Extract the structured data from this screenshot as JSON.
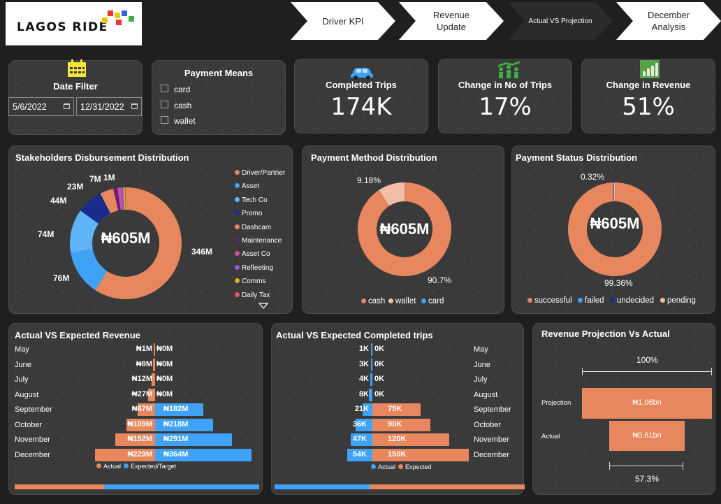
{
  "brand": {
    "name": "LAGOS RIDE"
  },
  "nav": [
    {
      "label": "Driver KPI"
    },
    {
      "label": "Revenue Update"
    },
    {
      "label": "Actual VS Projection"
    },
    {
      "label": "December Analysis"
    }
  ],
  "date_filter": {
    "title": "Date Filter",
    "start": "5/6/2022",
    "end": "12/31/2022"
  },
  "payment_means": {
    "title": "Payment Means",
    "options": [
      "card",
      "cash",
      "wallet"
    ]
  },
  "kpis": [
    {
      "label": "Completed Trips",
      "value": "174K",
      "icon": "car-icon"
    },
    {
      "label": "Change in No of Trips",
      "value": "17%",
      "icon": "people-growth-icon"
    },
    {
      "label": "Change in Revenue",
      "value": "51%",
      "icon": "bar-growth-icon"
    }
  ],
  "colors": {
    "orange": "#e8875e",
    "blue": "#3ea3f6",
    "lightblue": "#5fb3f7",
    "navy": "#1b2a8c",
    "purple": "#6b1f7a",
    "pink": "#d04fa0",
    "violet": "#8c5ad6",
    "gold": "#d6b21c",
    "red": "#e05a5a",
    "peach": "#f2bfa6"
  },
  "stakeholders": {
    "title": "Stakeholders Disbursement Distribution",
    "center": "₦605M",
    "legend": [
      "Driver/Partner",
      "Asset",
      "Tech Co",
      "Promo",
      "Dashcam",
      "Maintenance",
      "Asset Co",
      "Refleeting",
      "Comms",
      "Daily Tax"
    ],
    "labels": [
      "346M",
      "76M",
      "74M",
      "44M",
      "23M",
      "7M",
      "1M"
    ]
  },
  "payment_method": {
    "title": "Payment Method Distribution",
    "center": "₦605M",
    "labels": [
      "9.18%",
      "90.7%"
    ],
    "legend": [
      "cash",
      "wallet",
      "card"
    ]
  },
  "payment_status": {
    "title": "Payment Status Distribution",
    "center": "₦605M",
    "labels": [
      "0.32%",
      "99.36%"
    ],
    "legend": [
      "successful",
      "failed",
      "undecided",
      "pending"
    ]
  },
  "revenue_chart": {
    "title": "Actual VS Expected Revenue",
    "months": [
      "May",
      "June",
      "July",
      "August",
      "September",
      "October",
      "November",
      "December"
    ],
    "actual_labels": [
      "₦1M",
      "₦8M",
      "₦12M",
      "₦27M",
      "₦67M",
      "₦109M",
      "₦152M",
      "₦229M"
    ],
    "expected_labels": [
      "₦0M",
      "₦0M",
      "₦0M",
      "₦0M",
      "₦182M",
      "₦218M",
      "₦291M",
      "₦364M"
    ],
    "legend": [
      "Actual",
      "Expected/Target"
    ]
  },
  "trips_chart": {
    "title": "Actual VS Expected Completed trips",
    "months": [
      "May",
      "June",
      "July",
      "August",
      "September",
      "October",
      "November",
      "December"
    ],
    "actual_labels": [
      "1K",
      "3K",
      "4K",
      "8K",
      "21K",
      "36K",
      "47K",
      "54K"
    ],
    "expected_labels": [
      "0K",
      "0K",
      "0K",
      "0K",
      "75K",
      "90K",
      "120K",
      "150K"
    ],
    "legend": [
      "Actual",
      "Expected"
    ]
  },
  "projection": {
    "title": "Revenue Projection Vs Actual",
    "top_pct": "100%",
    "bottom_pct": "57.3%",
    "rows": [
      {
        "label": "Projection",
        "value": "₦1.06bn"
      },
      {
        "label": "Actual",
        "value": "₦0.61bn"
      }
    ]
  },
  "chart_data": [
    {
      "type": "pie",
      "title": "Stakeholders Disbursement Distribution",
      "categories": [
        "Driver/Partner",
        "Asset",
        "Tech Co",
        "Promo",
        "Dashcam",
        "Maintenance",
        "Asset Co",
        "Refleeting",
        "Comms",
        "Daily Tax"
      ],
      "values": [
        346,
        76,
        74,
        44,
        23,
        7,
        6,
        4,
        3,
        1
      ]
    },
    {
      "type": "pie",
      "title": "Payment Method Distribution",
      "categories": [
        "cash",
        "wallet",
        "card"
      ],
      "values": [
        90.7,
        9.18,
        0.12
      ]
    },
    {
      "type": "pie",
      "title": "Payment Status Distribution",
      "categories": [
        "successful",
        "failed",
        "undecided",
        "pending"
      ],
      "values": [
        99.36,
        0.16,
        0.16,
        0.32
      ]
    },
    {
      "type": "bar",
      "title": "Actual VS Expected Revenue",
      "categories": [
        "May",
        "June",
        "July",
        "August",
        "September",
        "October",
        "November",
        "December"
      ],
      "series": [
        {
          "name": "Actual",
          "values": [
            1,
            8,
            12,
            27,
            67,
            109,
            152,
            229
          ]
        },
        {
          "name": "Expected/Target",
          "values": [
            0,
            0,
            0,
            0,
            182,
            218,
            291,
            364
          ]
        }
      ]
    },
    {
      "type": "bar",
      "title": "Actual VS Expected Completed trips",
      "categories": [
        "May",
        "June",
        "July",
        "August",
        "September",
        "October",
        "November",
        "December"
      ],
      "series": [
        {
          "name": "Actual",
          "values": [
            1,
            3,
            4,
            8,
            21,
            36,
            47,
            54
          ]
        },
        {
          "name": "Expected",
          "values": [
            0,
            0,
            0,
            0,
            75,
            90,
            120,
            150
          ]
        }
      ]
    },
    {
      "type": "bar",
      "title": "Revenue Projection Vs Actual",
      "categories": [
        "Projection",
        "Actual"
      ],
      "values": [
        1.06,
        0.61
      ]
    }
  ]
}
